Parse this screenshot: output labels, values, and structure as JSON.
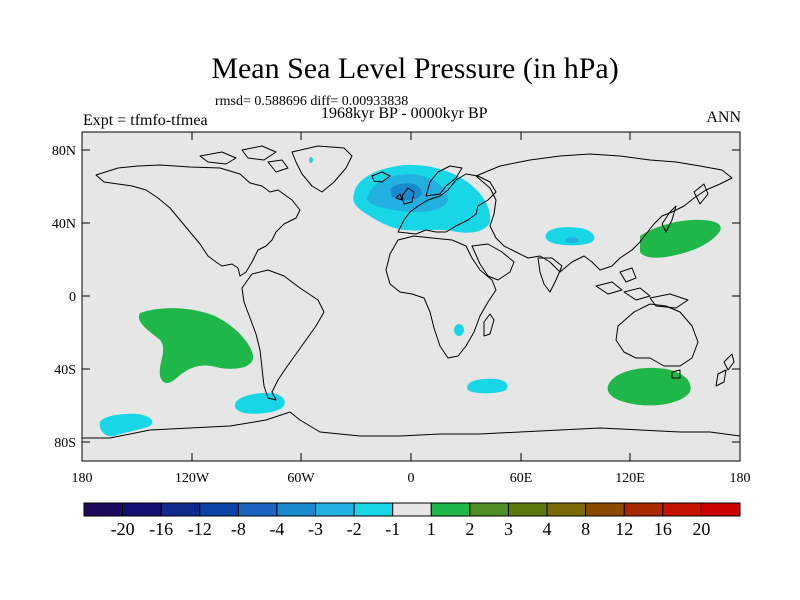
{
  "title": "Mean Sea Level Pressure (in hPa)",
  "stats": "rmsd= 0.588696 diff= 0.00933838",
  "period": "1968kyr BP - 0000kyr BP",
  "experiment": "Expt = tfmfo-tfmea",
  "season": "ANN",
  "lat_ticks": [
    "80N",
    "40N",
    "0",
    "40S",
    "80S"
  ],
  "lon_ticks": [
    "180",
    "120W",
    "60W",
    "0",
    "60E",
    "120E",
    "180"
  ],
  "colorbar": {
    "labels": [
      "-20",
      "-16",
      "-12",
      "-8",
      "-4",
      "-3",
      "-2",
      "-1",
      "1",
      "2",
      "3",
      "4",
      "8",
      "12",
      "16",
      "20"
    ],
    "colors": [
      "#1d0a5e",
      "#101070",
      "#0f2a8c",
      "#0a44a8",
      "#1a64c0",
      "#1a8ad0",
      "#22b0e0",
      "#18d6e6",
      "#e6e6e6",
      "#1fb848",
      "#4e8e24",
      "#5c7a10",
      "#7a6a08",
      "#8c4a00",
      "#a82800",
      "#c21400",
      "#cc0000"
    ]
  },
  "map_colors": {
    "background": "#e6e6e6",
    "positive_2": "#1fb848",
    "negative_1": "#18d6e6",
    "negative_2": "#22b0e0",
    "negative_3": "#1a8ad0"
  },
  "anomalies": [
    {
      "name": "south-pacific-high",
      "sign": "positive",
      "lon_center": -125,
      "lat_center": -30
    },
    {
      "name": "north-atlantic-europe-low",
      "sign": "negative",
      "lon_center": 5,
      "lat_center": 52
    },
    {
      "name": "north-pacific-high",
      "sign": "positive",
      "lon_center": 147,
      "lat_center": 35
    },
    {
      "name": "southern-indian-high",
      "sign": "positive",
      "lon_center": 122,
      "lat_center": -50
    },
    {
      "name": "central-asia-low",
      "sign": "negative",
      "lon_center": 90,
      "lat_center": 32
    }
  ]
}
